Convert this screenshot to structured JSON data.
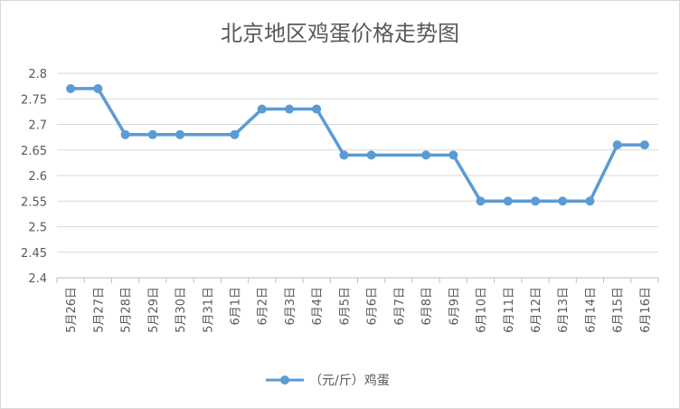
{
  "chart_data": {
    "type": "line",
    "title": "北京地区鸡蛋价格走势图",
    "categories": [
      "5月26日",
      "5月27日",
      "5月28日",
      "5月29日",
      "5月30日",
      "5月31日",
      "6月1日",
      "6月2日",
      "6月3日",
      "6月4日",
      "6月5日",
      "6月6日",
      "6月7日",
      "6月8日",
      "6月9日",
      "6月10日",
      "6月11日",
      "6月12日",
      "6月13日",
      "6月14日",
      "6月15日",
      "6月16日"
    ],
    "series": [
      {
        "name": "（元/斤）鸡蛋",
        "color": "#5b9bd5",
        "values": [
          2.77,
          2.77,
          2.68,
          2.68,
          2.68,
          null,
          2.68,
          2.73,
          2.73,
          2.73,
          2.64,
          2.64,
          null,
          2.64,
          2.64,
          2.55,
          2.55,
          2.55,
          2.55,
          2.55,
          2.66,
          2.66
        ]
      }
    ],
    "ylim": [
      2.4,
      2.8
    ],
    "yticks": [
      "2.4",
      "2.45",
      "2.5",
      "2.55",
      "2.6",
      "2.65",
      "2.7",
      "2.75",
      "2.8"
    ],
    "grid": true,
    "legend": "bottom"
  }
}
